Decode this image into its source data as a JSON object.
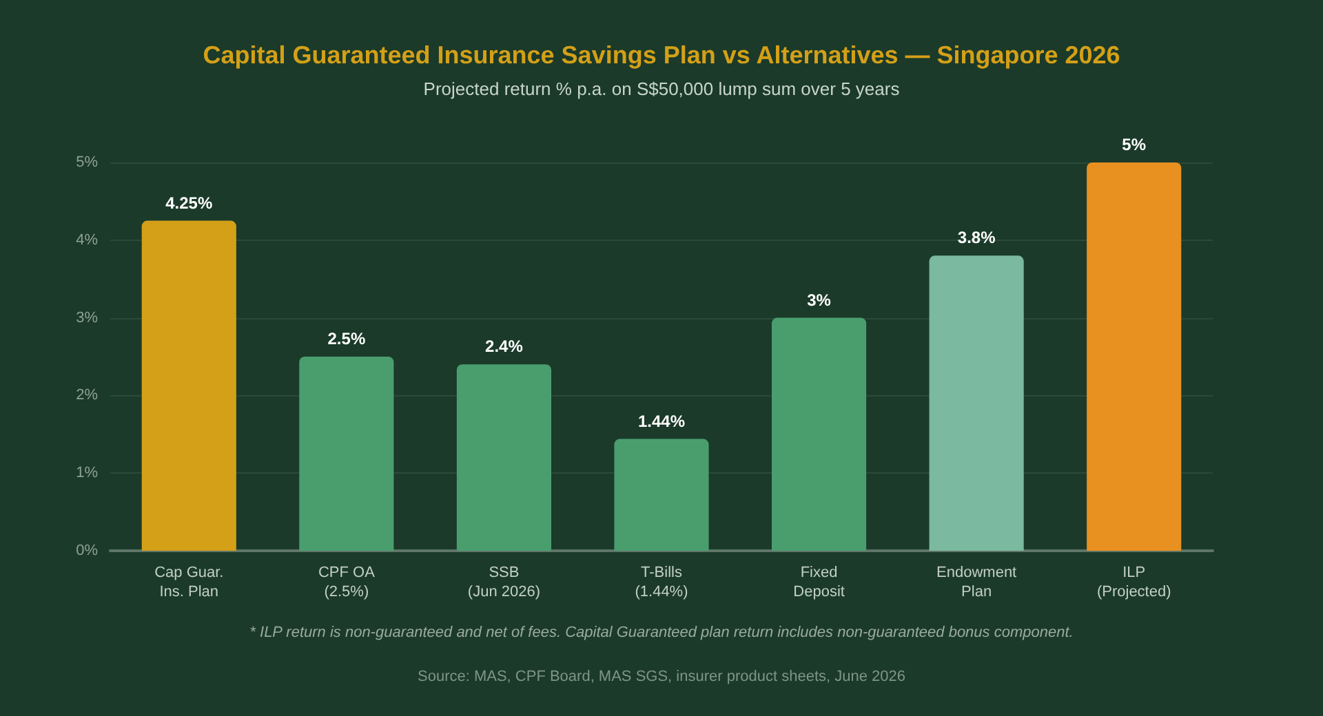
{
  "chart_data": {
    "type": "bar",
    "title": "Capital Guaranteed Insurance Savings Plan vs Alternatives — Singapore 2026",
    "subtitle": "Projected return % p.a. on S$50,000 lump sum over 5 years",
    "categories": [
      "Cap Guar.\nIns. Plan",
      "CPF OA\n(2.5%)",
      "SSB\n(Jun 2026)",
      "T-Bills\n(1.44%)",
      "Fixed\nDeposit",
      "Endowment\nPlan",
      "ILP\n(Projected)"
    ],
    "values": [
      4.25,
      2.5,
      2.4,
      1.44,
      3,
      3.8,
      5
    ],
    "value_labels": [
      "4.25%",
      "2.5%",
      "2.4%",
      "1.44%",
      "3%",
      "3.8%",
      "5%"
    ],
    "colors": [
      "#d4a017",
      "#4a9e6e",
      "#4a9e6e",
      "#4a9e6e",
      "#4a9e6e",
      "#7bb9a0",
      "#e89020"
    ],
    "ylim": [
      0,
      5
    ],
    "yticks": [
      {
        "value": 0,
        "label": "0%"
      },
      {
        "value": 1,
        "label": "1%"
      },
      {
        "value": 2,
        "label": "2%"
      },
      {
        "value": 3,
        "label": "3%"
      },
      {
        "value": 4,
        "label": "4%"
      },
      {
        "value": 5,
        "label": "5%"
      }
    ],
    "grid": "y",
    "annotations": [
      "* ILP return is non-guaranteed and net of fees. Capital Guaranteed plan return includes non-guaranteed bonus component.",
      "Source: MAS, CPF Board, MAS SGS, insurer product sheets, June 2026"
    ]
  }
}
